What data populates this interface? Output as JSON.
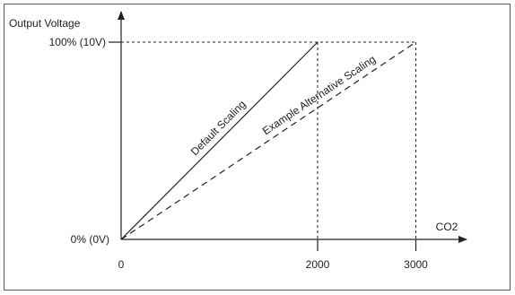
{
  "chart_data": {
    "type": "line",
    "xlabel": "CO2",
    "ylabel": "Output Voltage",
    "x_ticks": [
      {
        "value": 0,
        "label": "0"
      },
      {
        "value": 2000,
        "label": "2000"
      },
      {
        "value": 3000,
        "label": "3000"
      }
    ],
    "y_ticks": [
      {
        "value": 0,
        "label": "0% (0V)"
      },
      {
        "value": 100,
        "label": "100% (10V)"
      }
    ],
    "xlim": [
      0,
      4000
    ],
    "ylim": [
      0,
      120
    ],
    "grid": false,
    "series": [
      {
        "name": "Default Scaling",
        "x": [
          0,
          2000
        ],
        "y": [
          0,
          100
        ],
        "style": "solid",
        "color": "#222222"
      },
      {
        "name": "Example Alternative Scaling",
        "x": [
          0,
          3000
        ],
        "y": [
          0,
          100
        ],
        "style": "dashed",
        "color": "#222222"
      }
    ]
  }
}
